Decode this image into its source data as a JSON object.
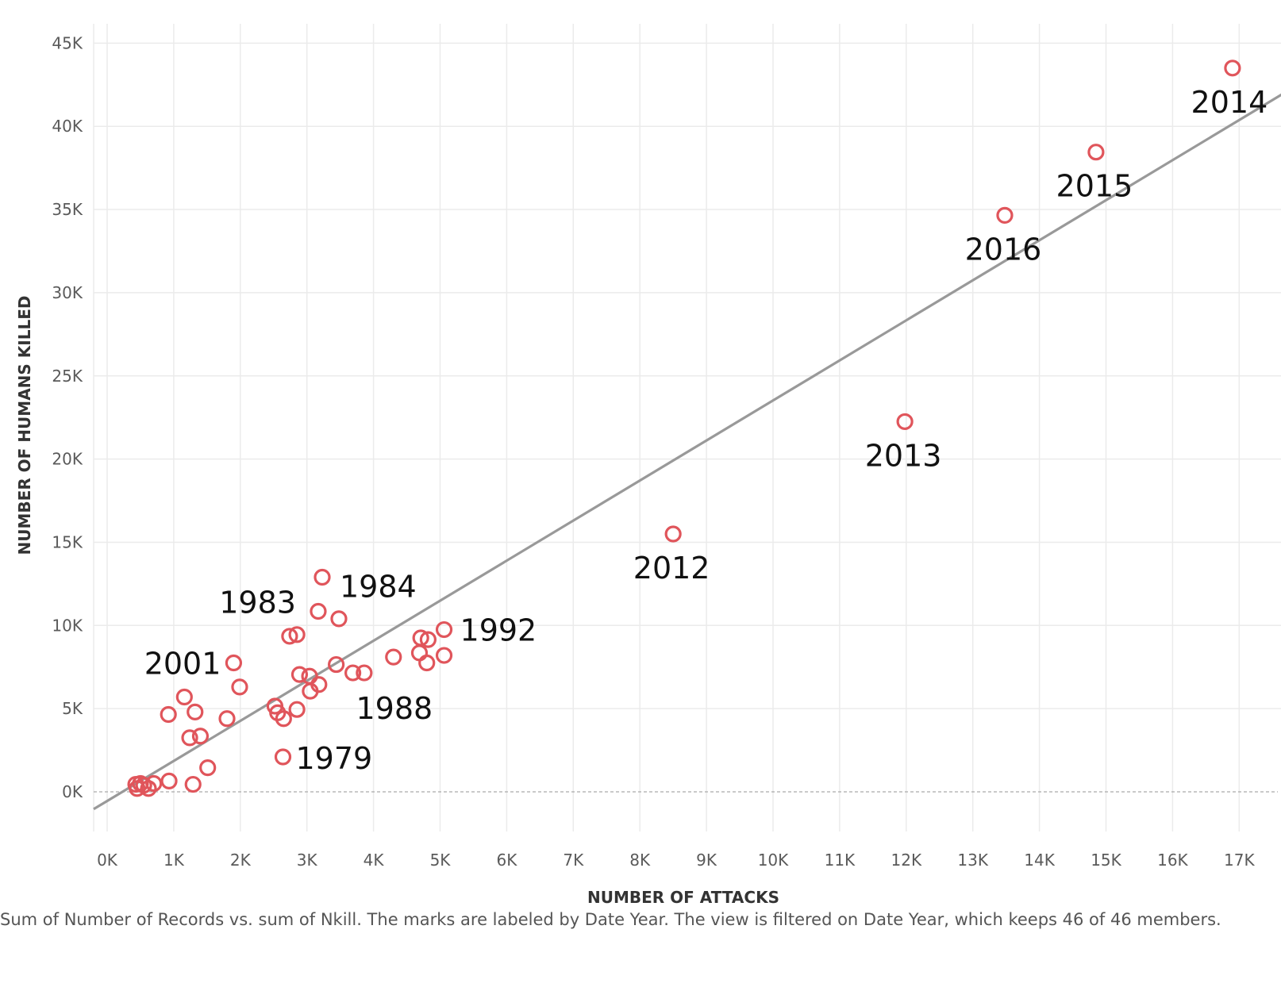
{
  "chart_data": {
    "type": "scatter",
    "xlabel": "NUMBER OF ATTACKS",
    "ylabel": "NUMBER OF HUMANS KILLED",
    "xlim": [
      0,
      17800
    ],
    "ylim": [
      -2500,
      45500
    ],
    "x_ticks": [
      0,
      1000,
      2000,
      3000,
      4000,
      5000,
      6000,
      7000,
      8000,
      9000,
      10000,
      11000,
      12000,
      13000,
      14000,
      15000,
      16000,
      17000
    ],
    "x_tick_labels": [
      "0K",
      "1K",
      "2K",
      "3K",
      "4K",
      "5K",
      "6K",
      "7K",
      "8K",
      "9K",
      "10K",
      "11K",
      "12K",
      "13K",
      "14K",
      "15K",
      "16K",
      "17K"
    ],
    "y_ticks": [
      0,
      5000,
      10000,
      15000,
      20000,
      25000,
      30000,
      35000,
      40000,
      45000
    ],
    "y_tick_labels": [
      "0K",
      "5K",
      "10K",
      "15K",
      "20K",
      "25K",
      "30K",
      "35K",
      "40K",
      "45K"
    ],
    "grid": true,
    "marker_color": "#e0555b",
    "trend_color": "#999999",
    "trend_line": [
      [
        0,
        -550
      ],
      [
        17800,
        42300
      ]
    ],
    "points": [
      {
        "x": 16900,
        "y": 43500,
        "label": "2014"
      },
      {
        "x": 14850,
        "y": 38450,
        "label": "2015"
      },
      {
        "x": 13480,
        "y": 34650,
        "label": "2016"
      },
      {
        "x": 11980,
        "y": 22250,
        "label": "2013"
      },
      {
        "x": 8500,
        "y": 15500,
        "label": "2012"
      },
      {
        "x": 3230,
        "y": 12900,
        "label": "1984"
      },
      {
        "x": 3170,
        "y": 10850,
        "label": "1983"
      },
      {
        "x": 5060,
        "y": 9750,
        "label": "1992"
      },
      {
        "x": 1900,
        "y": 7750,
        "label": "2001"
      },
      {
        "x": 3860,
        "y": 7150,
        "label": "1988"
      },
      {
        "x": 2640,
        "y": 2100,
        "label": "1979"
      },
      {
        "x": 3480,
        "y": 10400,
        "label": ""
      },
      {
        "x": 2740,
        "y": 9350,
        "label": ""
      },
      {
        "x": 2850,
        "y": 9450,
        "label": ""
      },
      {
        "x": 4710,
        "y": 9250,
        "label": ""
      },
      {
        "x": 4820,
        "y": 9150,
        "label": ""
      },
      {
        "x": 4690,
        "y": 8350,
        "label": ""
      },
      {
        "x": 5060,
        "y": 8200,
        "label": ""
      },
      {
        "x": 4300,
        "y": 8100,
        "label": ""
      },
      {
        "x": 4800,
        "y": 7750,
        "label": ""
      },
      {
        "x": 3440,
        "y": 7650,
        "label": ""
      },
      {
        "x": 3690,
        "y": 7150,
        "label": ""
      },
      {
        "x": 2890,
        "y": 7050,
        "label": ""
      },
      {
        "x": 3040,
        "y": 6950,
        "label": ""
      },
      {
        "x": 3180,
        "y": 6450,
        "label": ""
      },
      {
        "x": 3050,
        "y": 6050,
        "label": ""
      },
      {
        "x": 1990,
        "y": 6300,
        "label": ""
      },
      {
        "x": 1160,
        "y": 5700,
        "label": ""
      },
      {
        "x": 2520,
        "y": 5150,
        "label": ""
      },
      {
        "x": 2560,
        "y": 4750,
        "label": ""
      },
      {
        "x": 2850,
        "y": 4950,
        "label": ""
      },
      {
        "x": 1320,
        "y": 4800,
        "label": ""
      },
      {
        "x": 920,
        "y": 4650,
        "label": ""
      },
      {
        "x": 2650,
        "y": 4400,
        "label": ""
      },
      {
        "x": 1800,
        "y": 4400,
        "label": ""
      },
      {
        "x": 1400,
        "y": 3350,
        "label": ""
      },
      {
        "x": 1240,
        "y": 3250,
        "label": ""
      },
      {
        "x": 1510,
        "y": 1450,
        "label": ""
      },
      {
        "x": 930,
        "y": 650,
        "label": ""
      },
      {
        "x": 1290,
        "y": 450,
        "label": ""
      },
      {
        "x": 700,
        "y": 500,
        "label": ""
      },
      {
        "x": 500,
        "y": 500,
        "label": ""
      },
      {
        "x": 550,
        "y": 400,
        "label": ""
      },
      {
        "x": 430,
        "y": 450,
        "label": ""
      },
      {
        "x": 620,
        "y": 200,
        "label": ""
      },
      {
        "x": 450,
        "y": 200,
        "label": ""
      }
    ]
  },
  "caption": "Sum of Number of Records vs. sum of Nkill.  The marks are labeled by Date Year. The view is filtered on Date Year, which keeps 46 of 46 members."
}
